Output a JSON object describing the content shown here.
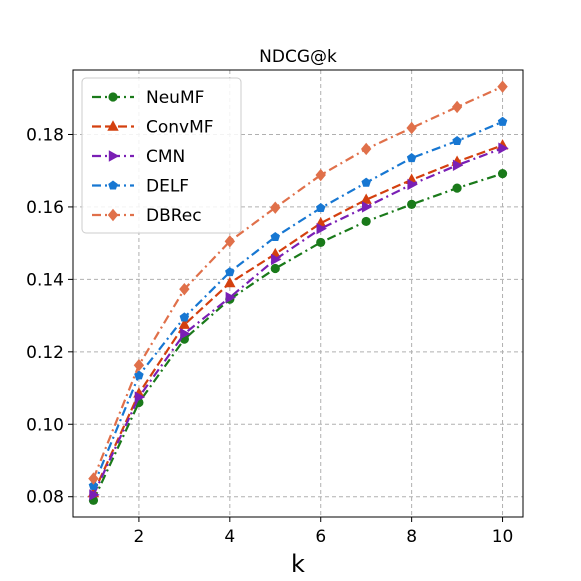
{
  "chart_data": {
    "type": "line",
    "title": "NDCG@k",
    "xlabel": "k",
    "ylabel": "",
    "xlim": [
      0.55,
      10.45
    ],
    "ylim": [
      0.0744,
      0.1978
    ],
    "xticks": [
      2,
      4,
      6,
      8,
      10
    ],
    "yticks": [
      0.08,
      0.1,
      0.12,
      0.14,
      0.16,
      0.18
    ],
    "ytick_labels": [
      "0.08",
      "0.10",
      "0.12",
      "0.14",
      "0.16",
      "0.18"
    ],
    "grid": true,
    "legend_position": "upper-left",
    "x": [
      1,
      2,
      3,
      4,
      5,
      6,
      7,
      8,
      9,
      10
    ],
    "series": [
      {
        "name": "NeuMF",
        "color": "#1a7a1a",
        "marker": "circle",
        "dash": "dashdot",
        "values": [
          0.079,
          0.106,
          0.1235,
          0.1345,
          0.143,
          0.1502,
          0.156,
          0.1607,
          0.1652,
          0.1692
        ]
      },
      {
        "name": "ConvMF",
        "color": "#d4400f",
        "marker": "triangle-up",
        "dash": "dashed",
        "values": [
          0.081,
          0.1085,
          0.1275,
          0.139,
          0.147,
          0.1555,
          0.162,
          0.1675,
          0.1725,
          0.177
        ]
      },
      {
        "name": "CMN",
        "color": "#7a1fb5",
        "marker": "triangle-right",
        "dash": "dashdot",
        "values": [
          0.0805,
          0.1075,
          0.125,
          0.135,
          0.1455,
          0.154,
          0.16,
          0.1662,
          0.1715,
          0.1762
        ]
      },
      {
        "name": "DELF",
        "color": "#1777d2",
        "marker": "pentagon",
        "dash": "dashdot",
        "values": [
          0.083,
          0.1135,
          0.1295,
          0.142,
          0.1517,
          0.1597,
          0.1667,
          0.1735,
          0.1782,
          0.1835
        ]
      },
      {
        "name": "DBRec",
        "color": "#e0704a",
        "marker": "diamond",
        "dash": "dashdot",
        "values": [
          0.085,
          0.1163,
          0.1373,
          0.1505,
          0.1598,
          0.1688,
          0.176,
          0.1818,
          0.1876,
          0.1932
        ]
      }
    ]
  }
}
